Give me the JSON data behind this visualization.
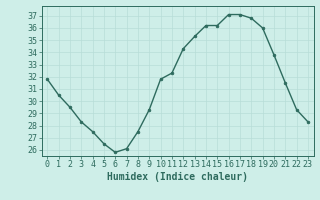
{
  "x": [
    0,
    1,
    2,
    3,
    4,
    5,
    6,
    7,
    8,
    9,
    10,
    11,
    12,
    13,
    14,
    15,
    16,
    17,
    18,
    19,
    20,
    21,
    22,
    23
  ],
  "y": [
    31.8,
    30.5,
    29.5,
    28.3,
    27.5,
    26.5,
    25.8,
    26.1,
    27.5,
    29.3,
    31.8,
    32.3,
    34.3,
    35.3,
    36.2,
    36.2,
    37.1,
    37.1,
    36.8,
    36.0,
    33.8,
    31.5,
    29.3,
    28.3
  ],
  "xlabel": "Humidex (Indice chaleur)",
  "ylim": [
    25.5,
    37.8
  ],
  "xlim": [
    -0.5,
    23.5
  ],
  "yticks": [
    26,
    27,
    28,
    29,
    30,
    31,
    32,
    33,
    34,
    35,
    36,
    37
  ],
  "xticks": [
    0,
    1,
    2,
    3,
    4,
    5,
    6,
    7,
    8,
    9,
    10,
    11,
    12,
    13,
    14,
    15,
    16,
    17,
    18,
    19,
    20,
    21,
    22,
    23
  ],
  "line_color": "#2e6b5e",
  "marker_color": "#2e6b5e",
  "bg_color": "#ceeee8",
  "grid_color": "#b8ddd7",
  "axis_color": "#2e6b5e",
  "label_color": "#2e6b5e",
  "tick_fontsize": 6.0,
  "xlabel_fontsize": 7.0
}
